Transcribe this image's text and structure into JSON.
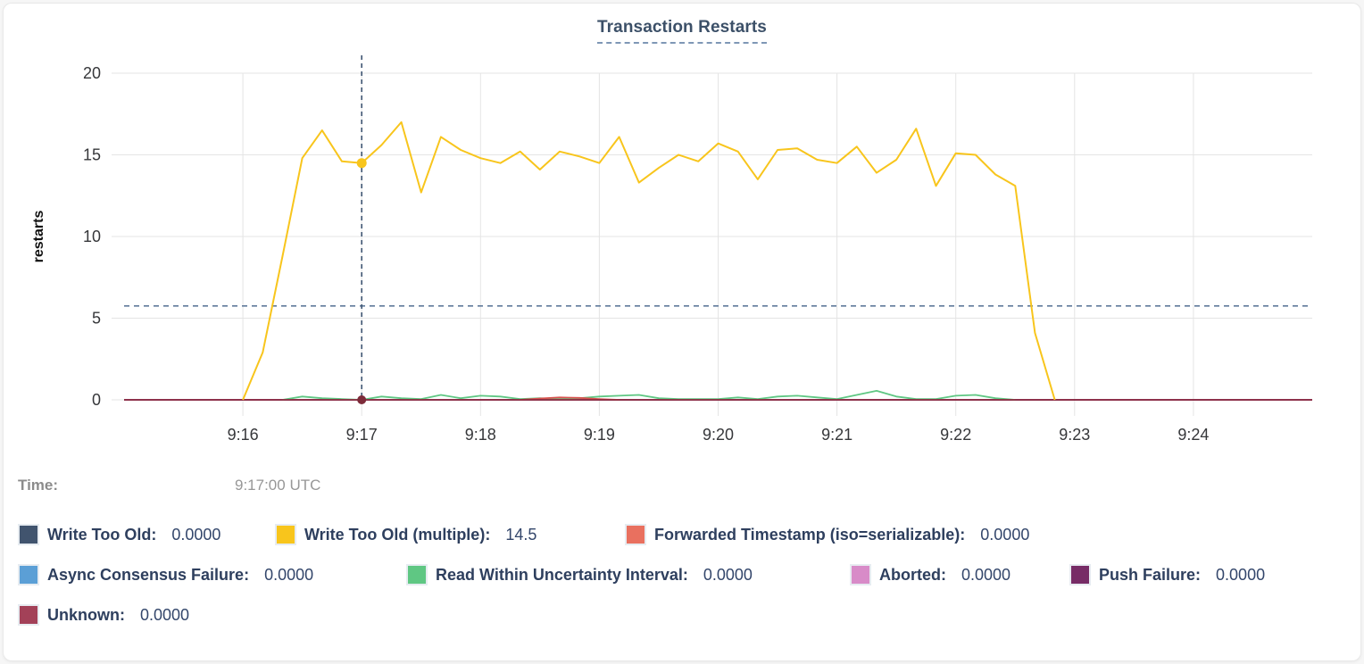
{
  "header": {
    "title": "Transaction Restarts"
  },
  "time_row": {
    "label": "Time:",
    "value": "9:17:00 UTC"
  },
  "legend": {
    "rows": [
      [
        {
          "label": "Write Too Old",
          "value": "0.0000",
          "color": "#41546e"
        },
        {
          "label": "Write Too Old (multiple)",
          "value": "14.5",
          "color": "#f8c51c"
        },
        {
          "label": "Forwarded Timestamp (iso=serializable)",
          "value": "0.0000",
          "color": "#e9705f"
        }
      ],
      [
        {
          "label": "Async Consensus Failure",
          "value": "0.0000",
          "color": "#5b9fd6"
        },
        {
          "label": "Read Within Uncertainty Interval",
          "value": "0.0000",
          "color": "#5fc783"
        },
        {
          "label": "Aborted",
          "value": "0.0000",
          "color": "#d88bc8"
        },
        {
          "label": "Push Failure",
          "value": "0.0000",
          "color": "#772c66"
        }
      ],
      [
        {
          "label": "Unknown",
          "value": "0.0000",
          "color": "#a34158"
        }
      ]
    ]
  },
  "chart_data": {
    "type": "line",
    "title": "Transaction Restarts",
    "xlabel": "",
    "ylabel": "restarts",
    "y_axis": {
      "min": 0,
      "max": 20,
      "ticks": [
        0,
        5,
        10,
        15,
        20
      ],
      "label": "restarts"
    },
    "x_axis": {
      "min": "9:15:00",
      "max": "9:25:00",
      "ticks": [
        "9:16",
        "9:17",
        "9:18",
        "9:19",
        "9:20",
        "9:21",
        "9:22",
        "9:23",
        "9:24"
      ]
    },
    "grid": true,
    "threshold": {
      "value": 5.75,
      "style": "dashed"
    },
    "crosshair": {
      "time": "9:17:00",
      "points": [
        {
          "series": "Write Too Old (multiple)",
          "value": 14.5,
          "color": "#f8c51c"
        },
        {
          "series": "Unknown",
          "value": 0,
          "color": "#7d2b3a"
        }
      ]
    },
    "series": [
      {
        "name": "Write Too Old",
        "color": "#41546e",
        "width": 1.5,
        "start": "9:15:00",
        "interval_s": 600,
        "values": [
          0,
          0
        ]
      },
      {
        "name": "Async Consensus Failure",
        "color": "#5b9fd6",
        "width": 1.5,
        "start": "9:15:00",
        "interval_s": 600,
        "values": [
          0,
          0
        ]
      },
      {
        "name": "Aborted",
        "color": "#d88bc8",
        "width": 1.5,
        "start": "9:15:00",
        "interval_s": 600,
        "values": [
          0,
          0
        ]
      },
      {
        "name": "Push Failure",
        "color": "#772c66",
        "width": 1.5,
        "start": "9:15:00",
        "interval_s": 600,
        "values": [
          0,
          0
        ]
      },
      {
        "name": "Read Within Uncertainty Interval",
        "color": "#5fc783",
        "width": 1.8,
        "start": "9:16:20",
        "interval_s": 10,
        "values": [
          0,
          0.2,
          0.1,
          0.05,
          0,
          0.2,
          0.1,
          0.05,
          0.3,
          0.1,
          0.25,
          0.2,
          0.05,
          0.1,
          0.05,
          0.1,
          0.2,
          0.25,
          0.3,
          0.1,
          0.05,
          0.05,
          0.05,
          0.15,
          0.05,
          0.2,
          0.25,
          0.15,
          0.05,
          0.3,
          0.55,
          0.2,
          0.05,
          0.05,
          0.25,
          0.3,
          0.1,
          0
        ]
      },
      {
        "name": "Forwarded Timestamp (iso=serializable)",
        "color": "#d9534f",
        "width": 1.8,
        "start": "9:18:20",
        "interval_s": 10,
        "values": [
          0,
          0.08,
          0.15,
          0.12,
          0.05,
          0
        ]
      },
      {
        "name": "Unknown",
        "color": "#8e2c40",
        "width": 1.8,
        "start": "9:15:00",
        "interval_s": 600,
        "values": [
          0,
          0
        ]
      },
      {
        "name": "Write Too Old (multiple)",
        "color": "#f8c51c",
        "width": 2,
        "start": "9:16:00",
        "interval_s": 10,
        "values": [
          0,
          2.9,
          8.8,
          14.8,
          16.5,
          14.6,
          14.5,
          15.6,
          17.0,
          12.7,
          16.1,
          15.3,
          14.8,
          14.5,
          15.2,
          14.1,
          15.2,
          14.9,
          14.5,
          16.1,
          13.3,
          14.2,
          15.0,
          14.6,
          15.7,
          15.2,
          13.5,
          15.3,
          15.4,
          14.7,
          14.5,
          15.5,
          13.9,
          14.7,
          16.6,
          13.1,
          15.1,
          15.0,
          13.8,
          13.1,
          4.1,
          0
        ]
      }
    ]
  }
}
